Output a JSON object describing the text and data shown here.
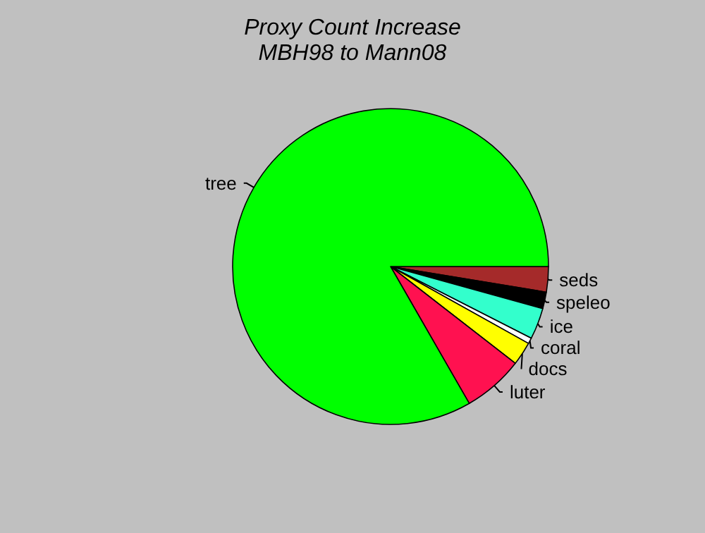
{
  "chart_data": {
    "type": "pie",
    "title": "Proxy Count Increase\nMBH98 to Mann08",
    "categories": [
      "seds",
      "speleo",
      "ice",
      "coral",
      "docs",
      "luter",
      "tree"
    ],
    "values": [
      2.6,
      1.7,
      3.2,
      0.6,
      2.4,
      6.2,
      83.3
    ],
    "colors": [
      "#a52a2a",
      "#000000",
      "#33ffcc",
      "#ffffff",
      "#ffff00",
      "#ff1150",
      "#00ff00"
    ]
  }
}
